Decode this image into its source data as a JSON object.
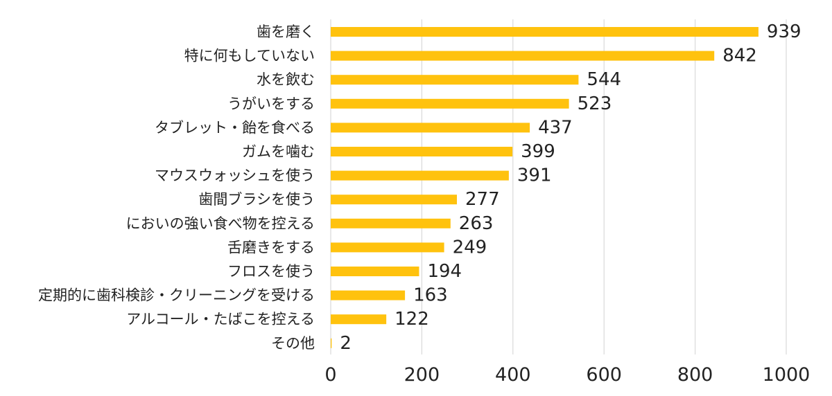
{
  "chart_data": {
    "type": "bar",
    "orientation": "horizontal",
    "categories": [
      "歯を磨く",
      "特に何もしていない",
      "水を飲む",
      "うがいをする",
      "タブレット・飴を食べる",
      "ガムを噛む",
      "マウスウォッシュを使う",
      "歯間ブラシを使う",
      "においの強い食べ物を控える",
      "舌磨きをする",
      "フロスを使う",
      "定期的に歯科検診・クリーニングを受ける",
      "アルコール・たばこを控える",
      "その他"
    ],
    "values": [
      939,
      842,
      544,
      523,
      437,
      399,
      391,
      277,
      263,
      249,
      194,
      163,
      122,
      2
    ],
    "xlim": [
      0,
      1000
    ],
    "xticks": [
      0,
      200,
      400,
      600,
      800,
      1000
    ],
    "title": "",
    "xlabel": "",
    "ylabel": "",
    "grid": "vertical",
    "legend": "none",
    "data_labels": true,
    "colors": {
      "bar": "#FFC20E",
      "grid": "#D9D9D9",
      "text": "#222222"
    }
  }
}
